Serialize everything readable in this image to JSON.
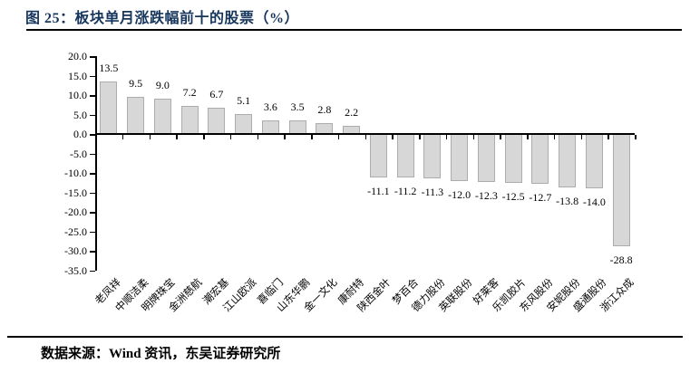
{
  "figure": {
    "title": "图 25：板块单月涨跌幅前十的股票（%）",
    "source_note": "数据来源：Wind 资讯，东吴证券研究所"
  },
  "colors": {
    "title_text": "#17365D",
    "bar_fill": "#D7D7D7",
    "bar_border": "#ACACAC",
    "axis": "#000000",
    "label_text": "#000000"
  },
  "chart_data": {
    "type": "bar",
    "title": "板块单月涨跌幅前十的股票（%）",
    "categories": [
      "老凤祥",
      "中顺洁柔",
      "明牌珠宝",
      "金洲慈航",
      "潮宏基",
      "江山欧派",
      "喜临门",
      "山东华鹏",
      "金一文化",
      "康耐特",
      "陕西金叶",
      "梦百合",
      "德力股份",
      "英联股份",
      "好莱客",
      "乐凯胶片",
      "东风股份",
      "安妮股份",
      "盛通股份",
      "浙江众成"
    ],
    "values": [
      13.5,
      9.5,
      9.0,
      7.2,
      6.7,
      5.1,
      3.6,
      3.5,
      2.8,
      2.2,
      -11.1,
      -11.2,
      -11.3,
      -12.0,
      -12.3,
      -12.5,
      -12.7,
      -13.8,
      -14.0,
      -28.8
    ],
    "value_labels": [
      "13.5",
      "9.5",
      "9.0",
      "7.2",
      "6.7",
      "5.1",
      "3.6",
      "3.5",
      "2.8",
      "2.2",
      "-11.1",
      "-11.2",
      "-11.3",
      "-12.0",
      "-12.3",
      "-12.5",
      "-12.7",
      "-13.8",
      "-14.0",
      "-28.8"
    ],
    "xlabel": "",
    "ylabel": "",
    "ylim": [
      -35.0,
      20.0
    ],
    "ytick_step": 5.0,
    "ytick_labels": [
      "20.0",
      "15.0",
      "10.0",
      "5.0",
      "0.0",
      "-5.0",
      "-10.0",
      "-15.0",
      "-20.0",
      "-25.0",
      "-30.0",
      "-35.0"
    ],
    "grid": false,
    "legend": "none",
    "bar_label_position": "outside-end",
    "category_label_rotation_deg": -45
  }
}
